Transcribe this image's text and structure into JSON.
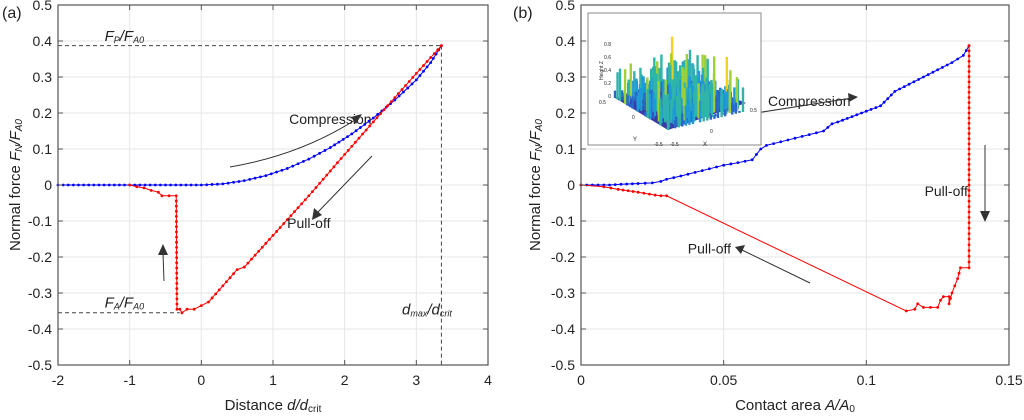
{
  "chart_data": [
    {
      "panel": "(a)",
      "type": "line",
      "title": "",
      "xlabel": "Distance d/d_crit",
      "xlabel_parts": {
        "main": "Distance ",
        "var": "d/d",
        "sub": "crit"
      },
      "ylabel": "Normal force F_N/F_A0",
      "ylabel_parts": {
        "main": "Normal force ",
        "var1": "F",
        "sub1": "N",
        "var2": "/F",
        "sub2": "A0"
      },
      "xlim": [
        -2,
        4
      ],
      "ylim": [
        -0.5,
        0.5
      ],
      "xticks": [
        "-2",
        "-1",
        "0",
        "1",
        "2",
        "3",
        "4"
      ],
      "yticks": [
        "-0.5",
        "-0.4",
        "-0.3",
        "-0.2",
        "-0.1",
        "0",
        "0.1",
        "0.2",
        "0.3",
        "0.4",
        "0.5"
      ],
      "grid": true,
      "series": [
        {
          "name": "Compression",
          "color": "#0000ff",
          "x": [
            -2.0,
            -1.5,
            -1.0,
            -0.5,
            0.0,
            0.3,
            0.6,
            0.9,
            1.2,
            1.5,
            1.8,
            2.1,
            2.4,
            2.7,
            3.0,
            3.2,
            3.35
          ],
          "y": [
            0.0,
            0.0,
            0.0,
            0.0,
            0.0,
            0.003,
            0.012,
            0.026,
            0.046,
            0.072,
            0.104,
            0.142,
            0.186,
            0.236,
            0.292,
            0.34,
            0.387
          ]
        },
        {
          "name": "Pull-off",
          "color": "#ff0000",
          "x": [
            3.35,
            3.0,
            2.5,
            2.0,
            1.5,
            1.0,
            0.6,
            0.5,
            0.3,
            0.1,
            0.0,
            -0.1,
            -0.2,
            -0.27,
            -0.3,
            -0.34,
            -0.35,
            -0.45,
            -0.55,
            -0.6,
            -0.7,
            -0.8,
            -0.9,
            -1.0
          ],
          "y": [
            0.387,
            0.31,
            0.198,
            0.085,
            -0.03,
            -0.14,
            -0.228,
            -0.235,
            -0.28,
            -0.325,
            -0.335,
            -0.345,
            -0.345,
            -0.355,
            -0.345,
            -0.345,
            -0.03,
            -0.03,
            -0.03,
            -0.02,
            -0.015,
            -0.008,
            -0.005,
            0.0
          ]
        }
      ],
      "annotations": [
        {
          "text": "Compression",
          "x": 1.8,
          "y": 0.17
        },
        {
          "text": "Pull-off",
          "x": 1.5,
          "y": -0.12
        },
        {
          "text": "F_P/F_A0",
          "x": -1.35,
          "y": 0.4,
          "parts": {
            "v1": "F",
            "s1": "P",
            "v2": "/F",
            "s2": "A0"
          }
        },
        {
          "text": "F_A/F_A0",
          "x": -1.35,
          "y": -0.34,
          "parts": {
            "v1": "F",
            "s1": "A",
            "v2": "/F",
            "s2": "A0"
          }
        },
        {
          "text": "d_max/d_crit",
          "x": 2.8,
          "y": -0.36,
          "parts": {
            "v1": "d",
            "s1": "max",
            "v2": "/d",
            "s2": "crit"
          }
        }
      ],
      "reference_lines": {
        "FP": 0.387,
        "FA": -0.355,
        "dmax": 3.35
      }
    },
    {
      "panel": "(b)",
      "type": "line",
      "title": "",
      "xlabel": "Contact area A/A_0",
      "xlabel_parts": {
        "main": "Contact area ",
        "var": "A/A",
        "sub": "0"
      },
      "ylabel": "Normal force F_N/F_A0",
      "ylabel_parts": {
        "main": "Normal force ",
        "var1": "F",
        "sub1": "N",
        "var2": "/F",
        "sub2": "A0"
      },
      "xlim": [
        0,
        0.15
      ],
      "ylim": [
        -0.5,
        0.5
      ],
      "xticks": [
        "0",
        "0.05",
        "0.1",
        "0.15"
      ],
      "yticks": [
        "-0.5",
        "-0.4",
        "-0.3",
        "-0.2",
        "-0.1",
        "0",
        "0.1",
        "0.2",
        "0.3",
        "0.4",
        "0.5"
      ],
      "grid": true,
      "series": [
        {
          "name": "Compression",
          "color": "#0000ff",
          "x": [
            0.0,
            0.01,
            0.014,
            0.02,
            0.025,
            0.028,
            0.03,
            0.035,
            0.04,
            0.045,
            0.05,
            0.055,
            0.06,
            0.063,
            0.065,
            0.07,
            0.075,
            0.08,
            0.085,
            0.088,
            0.09,
            0.095,
            0.1,
            0.105,
            0.11,
            0.115,
            0.12,
            0.125,
            0.13,
            0.134,
            0.136
          ],
          "y": [
            0.0,
            0.0,
            0.002,
            0.004,
            0.006,
            0.01,
            0.016,
            0.025,
            0.035,
            0.045,
            0.055,
            0.062,
            0.07,
            0.1,
            0.11,
            0.12,
            0.13,
            0.14,
            0.15,
            0.17,
            0.175,
            0.19,
            0.205,
            0.22,
            0.26,
            0.28,
            0.3,
            0.32,
            0.34,
            0.36,
            0.387
          ]
        },
        {
          "name": "Pull-off",
          "color": "#ff0000",
          "x": [
            0.136,
            0.136,
            0.136,
            0.136,
            0.136,
            0.133,
            0.132,
            0.131,
            0.13,
            0.129,
            0.129,
            0.127,
            0.126,
            0.125,
            0.12,
            0.118,
            0.117,
            0.114,
            0.03,
            0.028,
            0.026,
            0.02,
            0.013,
            0.008,
            0.0
          ],
          "y": [
            0.387,
            0.2,
            0.0,
            -0.15,
            -0.23,
            -0.23,
            -0.26,
            -0.28,
            -0.3,
            -0.33,
            -0.31,
            -0.31,
            -0.32,
            -0.34,
            -0.34,
            -0.33,
            -0.345,
            -0.35,
            -0.03,
            -0.03,
            -0.028,
            -0.02,
            -0.012,
            -0.005,
            0.0
          ]
        }
      ],
      "annotations": [
        {
          "text": "Compression",
          "x": 0.08,
          "y": 0.22
        },
        {
          "text": "Pull-off",
          "x": 0.045,
          "y": -0.19
        },
        {
          "text": "Pull-off",
          "x": 0.128,
          "y": -0.03
        }
      ],
      "inset": {
        "description": "3D rough surface height map",
        "zlabel": "Height Z",
        "xlabel": "X",
        "ylabel": "Y",
        "zticks": [
          "0",
          "0.2",
          "0.4",
          "0.6",
          "0.8"
        ],
        "xticks": [
          "-0.5",
          "0",
          "0.5"
        ],
        "yticks": [
          "0.5",
          "0",
          "-0.5"
        ]
      }
    }
  ]
}
